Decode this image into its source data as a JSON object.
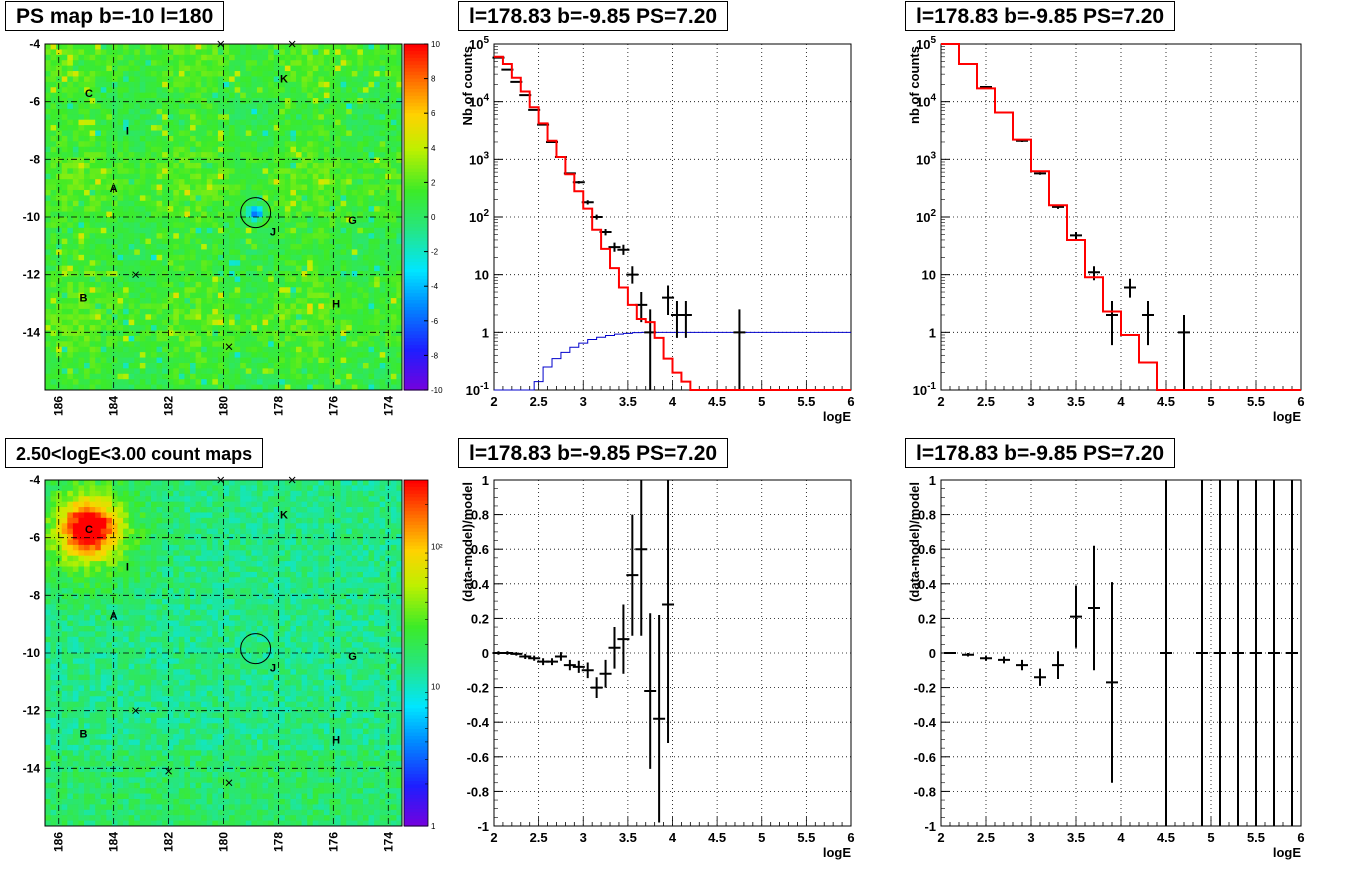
{
  "pad_titles": {
    "map_top": "PS map b=-10 l=180",
    "map_bottom": "2.50<logE<3.00 count maps",
    "spec_left": "l=178.83 b=-9.85 PS=7.20",
    "spec_right": "l=178.83 b=-9.85 PS=7.20",
    "res_left": "l=178.83 b=-9.85 PS=7.20",
    "res_right": "l=178.83 b=-9.85 PS=7.20"
  },
  "colors": {
    "data": "#000000",
    "model": "#ff0000",
    "exposure": "#0000cc"
  },
  "chart_data": [
    {
      "id": "map_top",
      "type": "heatmap",
      "title": "PS map b=-10 l=180",
      "x_ticks": [
        "186",
        "184",
        "182",
        "180",
        "178",
        "176",
        "174"
      ],
      "y_ticks": [
        "-4",
        "-6",
        "-8",
        "-10",
        "-12",
        "-14"
      ],
      "xlim": [
        186.5,
        173.5
      ],
      "ylim": [
        -16,
        -4
      ],
      "z_ticks": [
        "10",
        "8",
        "6",
        "4",
        "2",
        "0",
        "-2",
        "-4",
        "-6",
        "-8",
        "-10"
      ],
      "zlim": [
        -10,
        10
      ],
      "sources": [
        {
          "label": "C",
          "l": 184.9,
          "b": -5.7
        },
        {
          "label": "I",
          "l": 183.5,
          "b": -7.0
        },
        {
          "label": "A",
          "l": 184.0,
          "b": -9.0
        },
        {
          "label": "B",
          "l": 185.1,
          "b": -12.8
        },
        {
          "label": "K",
          "l": 177.8,
          "b": -5.2
        },
        {
          "label": "J",
          "l": 178.2,
          "b": -10.5
        },
        {
          "label": "G",
          "l": 175.3,
          "b": -10.1
        },
        {
          "label": "H",
          "l": 175.9,
          "b": -13.0
        }
      ],
      "markers": [
        {
          "l": 180.1,
          "b": -4.0
        },
        {
          "l": 177.5,
          "b": -4.0
        },
        {
          "l": 183.2,
          "b": -12.0
        },
        {
          "l": 179.8,
          "b": -14.5
        }
      ],
      "circle": {
        "l": 178.83,
        "b": -9.85
      },
      "grid": true
    },
    {
      "id": "map_bottom",
      "type": "heatmap",
      "title": "2.50<logE<3.00 count maps",
      "x_ticks": [
        "186",
        "184",
        "182",
        "180",
        "178",
        "176",
        "174"
      ],
      "y_ticks": [
        "-4",
        "-6",
        "-8",
        "-10",
        "-12",
        "-14"
      ],
      "xlim": [
        186.5,
        173.5
      ],
      "ylim": [
        -16,
        -4
      ],
      "z_ticks": [
        "10²",
        "10"
      ],
      "zscale": "log",
      "zlim": [
        1,
        300
      ],
      "sources": [
        {
          "label": "C",
          "l": 184.9,
          "b": -5.7
        },
        {
          "label": "I",
          "l": 183.5,
          "b": -7.0
        },
        {
          "label": "A",
          "l": 184.0,
          "b": -8.7
        },
        {
          "label": "B",
          "l": 185.1,
          "b": -12.8
        },
        {
          "label": "K",
          "l": 177.8,
          "b": -5.2
        },
        {
          "label": "J",
          "l": 178.2,
          "b": -10.5
        },
        {
          "label": "G",
          "l": 175.3,
          "b": -10.1
        },
        {
          "label": "H",
          "l": 175.9,
          "b": -13.0
        }
      ],
      "markers": [
        {
          "l": 180.1,
          "b": -4.0
        },
        {
          "l": 177.5,
          "b": -4.0
        },
        {
          "l": 183.2,
          "b": -12.0
        },
        {
          "l": 182.0,
          "b": -14.1
        },
        {
          "l": 179.8,
          "b": -14.5
        }
      ],
      "circle": {
        "l": 178.83,
        "b": -9.85
      },
      "grid": true
    },
    {
      "id": "spec_left",
      "type": "line",
      "title": "l=178.83 b=-9.85 PS=7.20",
      "xlabel": "logE",
      "ylabel": "Nb of counts",
      "yscale": "log",
      "xlim": [
        2,
        6
      ],
      "ylim": [
        0.1,
        100000
      ],
      "x_ticks": [
        "2",
        "2.5",
        "3",
        "3.5",
        "4",
        "4.5",
        "5",
        "5.5",
        "6"
      ],
      "y_ticks": [
        "10^-1",
        "1",
        "10",
        "10^2",
        "10^3",
        "10^4",
        "10^5"
      ],
      "model": {
        "edges": [
          2.0,
          2.1,
          2.2,
          2.3,
          2.4,
          2.5,
          2.6,
          2.7,
          2.8,
          2.9,
          3.0,
          3.1,
          3.2,
          3.3,
          3.4,
          3.5,
          3.6,
          3.7,
          3.8,
          3.9,
          4.0,
          4.1,
          4.2,
          4.3,
          6.0
        ],
        "values": [
          60000,
          45000,
          26000,
          15000,
          8000,
          4200,
          2100,
          1100,
          550,
          280,
          140,
          60,
          28,
          13,
          6,
          3,
          1.7,
          1.5,
          0.8,
          0.35,
          0.2,
          0.14,
          0.1,
          0.1
        ]
      },
      "exposure": {
        "edges": [
          2.0,
          2.45,
          2.55,
          2.65,
          2.75,
          2.85,
          2.95,
          3.05,
          3.15,
          3.25,
          3.35,
          3.45,
          3.55,
          3.65,
          3.75,
          3.85,
          6.0
        ],
        "values": [
          0.1,
          0.14,
          0.25,
          0.35,
          0.45,
          0.55,
          0.65,
          0.75,
          0.82,
          0.88,
          0.93,
          0.96,
          0.99,
          1.0,
          1.0,
          1.0
        ]
      },
      "points": [
        {
          "x": 2.05,
          "y": 58000,
          "ylo": 57000,
          "yhi": 59000
        },
        {
          "x": 2.15,
          "y": 36000,
          "ylo": 35000,
          "yhi": 37000
        },
        {
          "x": 2.25,
          "y": 22000,
          "ylo": 21500,
          "yhi": 22500
        },
        {
          "x": 2.35,
          "y": 13000,
          "ylo": 12600,
          "yhi": 13400
        },
        {
          "x": 2.45,
          "y": 7200,
          "ylo": 7000,
          "yhi": 7400
        },
        {
          "x": 2.55,
          "y": 4000,
          "ylo": 3900,
          "yhi": 4100
        },
        {
          "x": 2.65,
          "y": 2000,
          "ylo": 1950,
          "yhi": 2050
        },
        {
          "x": 2.75,
          "y": 1100,
          "ylo": 1060,
          "yhi": 1140
        },
        {
          "x": 2.85,
          "y": 570,
          "ylo": 545,
          "yhi": 595
        },
        {
          "x": 2.95,
          "y": 400,
          "ylo": 380,
          "yhi": 420
        },
        {
          "x": 3.05,
          "y": 180,
          "ylo": 165,
          "yhi": 195
        },
        {
          "x": 3.15,
          "y": 100,
          "ylo": 90,
          "yhi": 110
        },
        {
          "x": 3.25,
          "y": 55,
          "ylo": 48,
          "yhi": 62
        },
        {
          "x": 3.35,
          "y": 30,
          "ylo": 25,
          "yhi": 36
        },
        {
          "x": 3.45,
          "y": 27,
          "ylo": 22,
          "yhi": 33
        },
        {
          "x": 3.55,
          "y": 10,
          "ylo": 7,
          "yhi": 14
        },
        {
          "x": 3.65,
          "y": 3,
          "ylo": 1.5,
          "yhi": 5
        },
        {
          "x": 3.75,
          "y": 1,
          "ylo": 0.1,
          "yhi": 2.5
        },
        {
          "x": 3.95,
          "y": 4,
          "ylo": 2,
          "yhi": 6.5
        },
        {
          "x": 4.05,
          "y": 2,
          "ylo": 0.8,
          "yhi": 3.5
        },
        {
          "x": 4.15,
          "y": 2,
          "ylo": 0.8,
          "yhi": 3.5
        },
        {
          "x": 4.75,
          "y": 1,
          "ylo": 0.1,
          "yhi": 2.5
        }
      ],
      "grid": true
    },
    {
      "id": "spec_right",
      "type": "line",
      "title": "l=178.83 b=-9.85 PS=7.20",
      "xlabel": "logE",
      "ylabel": "nb of counts",
      "yscale": "log",
      "xlim": [
        2,
        6
      ],
      "ylim": [
        0.1,
        100000
      ],
      "x_ticks": [
        "2",
        "2.5",
        "3",
        "3.5",
        "4",
        "4.5",
        "5",
        "5.5",
        "6"
      ],
      "y_ticks": [
        "10^-1",
        "1",
        "10",
        "10^2",
        "10^3",
        "10^4",
        "10^5"
      ],
      "model": {
        "edges": [
          2.0,
          2.2,
          2.4,
          2.6,
          2.8,
          3.0,
          3.2,
          3.4,
          3.6,
          3.8,
          4.0,
          4.2,
          4.4,
          6.0
        ],
        "values": [
          100000,
          45000,
          17000,
          6500,
          2200,
          620,
          160,
          40,
          9,
          2.3,
          0.9,
          0.3,
          0.1
        ]
      },
      "points": [
        {
          "x": 2.1,
          "y": 100000,
          "ylo": 98000,
          "yhi": 102000
        },
        {
          "x": 2.3,
          "y": 45000,
          "ylo": 44000,
          "yhi": 46000
        },
        {
          "x": 2.5,
          "y": 18000,
          "ylo": 17500,
          "yhi": 18500
        },
        {
          "x": 2.7,
          "y": 6500,
          "ylo": 6300,
          "yhi": 6700
        },
        {
          "x": 2.9,
          "y": 2100,
          "ylo": 2000,
          "yhi": 2200
        },
        {
          "x": 3.1,
          "y": 570,
          "ylo": 540,
          "yhi": 600
        },
        {
          "x": 3.3,
          "y": 150,
          "ylo": 138,
          "yhi": 162
        },
        {
          "x": 3.5,
          "y": 48,
          "ylo": 41,
          "yhi": 55
        },
        {
          "x": 3.7,
          "y": 11,
          "ylo": 8,
          "yhi": 14
        },
        {
          "x": 3.9,
          "y": 2,
          "ylo": 0.6,
          "yhi": 3.5
        },
        {
          "x": 4.1,
          "y": 6,
          "ylo": 4,
          "yhi": 8.5
        },
        {
          "x": 4.3,
          "y": 2,
          "ylo": 0.6,
          "yhi": 3.5
        },
        {
          "x": 4.7,
          "y": 1,
          "ylo": 0.1,
          "yhi": 2
        }
      ],
      "grid": true
    },
    {
      "id": "res_left",
      "type": "scatter",
      "title": "l=178.83 b=-9.85 PS=7.20",
      "xlabel": "logE",
      "ylabel": "(data-model)/model",
      "xlim": [
        2,
        6
      ],
      "ylim": [
        -1,
        1
      ],
      "x_ticks": [
        "2",
        "2.5",
        "3",
        "3.5",
        "4",
        "4.5",
        "5",
        "5.5",
        "6"
      ],
      "y_ticks": [
        "-1",
        "-0.8",
        "-0.6",
        "-0.4",
        "-0.2",
        "0",
        "0.2",
        "0.4",
        "0.6",
        "0.8",
        "1"
      ],
      "points": [
        {
          "x": 2.05,
          "y": 0.0,
          "e": 0.01
        },
        {
          "x": 2.15,
          "y": 0.0,
          "e": 0.01
        },
        {
          "x": 2.25,
          "y": -0.005,
          "e": 0.01
        },
        {
          "x": 2.35,
          "y": -0.02,
          "e": 0.015
        },
        {
          "x": 2.45,
          "y": -0.03,
          "e": 0.015
        },
        {
          "x": 2.55,
          "y": -0.05,
          "e": 0.02
        },
        {
          "x": 2.65,
          "y": -0.05,
          "e": 0.02
        },
        {
          "x": 2.75,
          "y": -0.02,
          "e": 0.025
        },
        {
          "x": 2.85,
          "y": -0.07,
          "e": 0.03
        },
        {
          "x": 2.95,
          "y": -0.08,
          "e": 0.035
        },
        {
          "x": 3.05,
          "y": -0.1,
          "e": 0.045
        },
        {
          "x": 3.15,
          "y": -0.2,
          "e": 0.06
        },
        {
          "x": 3.25,
          "y": -0.12,
          "e": 0.08
        },
        {
          "x": 3.35,
          "y": 0.03,
          "e": 0.12
        },
        {
          "x": 3.45,
          "y": 0.08,
          "e": 0.2
        },
        {
          "x": 3.55,
          "y": 0.45,
          "e": 0.35
        },
        {
          "x": 3.65,
          "y": 0.6,
          "e": 0.5
        },
        {
          "x": 3.75,
          "y": -0.22,
          "e": 0.45
        },
        {
          "x": 3.85,
          "y": -0.38,
          "e": 0.6
        },
        {
          "x": 3.95,
          "y": 0.28,
          "e": 0.8
        }
      ],
      "grid": true
    },
    {
      "id": "res_right",
      "type": "scatter",
      "title": "l=178.83 b=-9.85 PS=7.20",
      "xlabel": "logE",
      "ylabel": "(data-model)/model",
      "xlim": [
        2,
        6
      ],
      "ylim": [
        -1,
        1
      ],
      "x_ticks": [
        "2",
        "2.5",
        "3",
        "3.5",
        "4",
        "4.5",
        "5",
        "5.5",
        "6"
      ],
      "y_ticks": [
        "-1",
        "-0.8",
        "-0.6",
        "-0.4",
        "-0.2",
        "0",
        "0.2",
        "0.4",
        "0.6",
        "0.8",
        "1"
      ],
      "points": [
        {
          "x": 2.1,
          "y": 0.0,
          "e": 0.006
        },
        {
          "x": 2.3,
          "y": -0.01,
          "e": 0.01
        },
        {
          "x": 2.5,
          "y": -0.03,
          "e": 0.015
        },
        {
          "x": 2.7,
          "y": -0.04,
          "e": 0.02
        },
        {
          "x": 2.9,
          "y": -0.07,
          "e": 0.03
        },
        {
          "x": 3.1,
          "y": -0.14,
          "e": 0.05
        },
        {
          "x": 3.3,
          "y": -0.07,
          "e": 0.08
        },
        {
          "x": 3.5,
          "y": 0.21,
          "e": 0.18
        },
        {
          "x": 3.7,
          "y": 0.26,
          "e": 0.36
        },
        {
          "x": 3.9,
          "y": -0.17,
          "e": 0.58
        },
        {
          "x": 4.5,
          "y": 0.0,
          "e": 9
        },
        {
          "x": 4.9,
          "y": 0.0,
          "e": 9
        },
        {
          "x": 5.1,
          "y": 0.0,
          "e": 9
        },
        {
          "x": 5.3,
          "y": 0.0,
          "e": 9
        },
        {
          "x": 5.5,
          "y": 0.0,
          "e": 9
        },
        {
          "x": 5.7,
          "y": 0.0,
          "e": 9
        },
        {
          "x": 5.9,
          "y": 0.0,
          "e": 9
        }
      ],
      "grid": true
    }
  ]
}
